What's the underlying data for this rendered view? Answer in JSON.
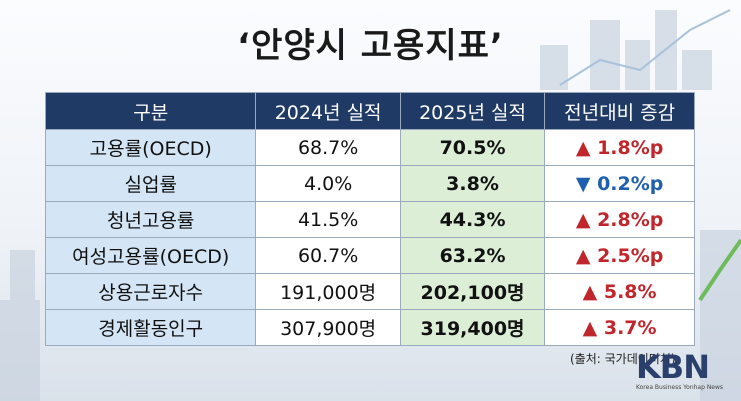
{
  "header": {
    "title": "‘안양시 고용지표’"
  },
  "table": {
    "columns": [
      "구분",
      "2024년 실적",
      "2025년 실적",
      "전년대비 증감"
    ],
    "rows": [
      [
        "고용률(OECD)",
        "68.7%",
        "70.5%",
        "▲ 1.8%p"
      ],
      [
        "실업률",
        "4.0%",
        "3.8%",
        "▼ 0.2%p"
      ],
      [
        "청년고용률",
        "41.5%",
        "44.3%",
        "▲ 2.8%p"
      ],
      [
        "여성고용률(OECD)",
        "60.7%",
        "63.2%",
        "▲ 2.5%p"
      ],
      [
        "상용근로자수",
        "191,000명",
        "202,100명",
        "▲ 5.8%"
      ],
      [
        "경제활동인구",
        "307,900명",
        "319,400명",
        "▲ 3.7%"
      ]
    ]
  },
  "footer": {
    "source": "(출처: 국가데이터처)",
    "logo": "KBN",
    "logo_subtitle": "Korea Business Yonhap News"
  }
}
